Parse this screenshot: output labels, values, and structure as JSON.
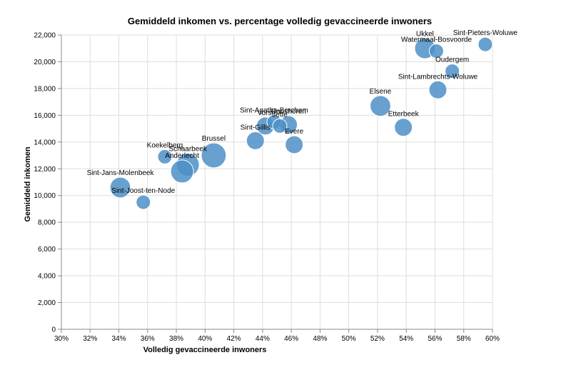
{
  "chart_data": {
    "type": "scatter",
    "title": "Gemiddeld inkomen vs. percentage volledig gevaccineerde inwoners",
    "xlabel": "Volledig gevaccineerde inwoners",
    "ylabel": "Gemiddeld inkomen",
    "xlim": [
      0.3,
      0.6
    ],
    "ylim": [
      0,
      22000
    ],
    "x_ticks": [
      "30%",
      "32%",
      "34%",
      "36%",
      "38%",
      "40%",
      "42%",
      "44%",
      "46%",
      "48%",
      "50%",
      "52%",
      "54%",
      "56%",
      "58%",
      "60%"
    ],
    "y_ticks": [
      "0",
      "2,000",
      "4,000",
      "6,000",
      "8,000",
      "10,000",
      "12,000",
      "14,000",
      "16,000",
      "18,000",
      "20,000",
      "22,000"
    ],
    "grid": true,
    "color": "#4e8fc7",
    "points": [
      {
        "label": "Sint-Jans-Molenbeek",
        "x": 0.341,
        "y": 10600,
        "size": 3
      },
      {
        "label": "Sint-Joost-ten-Node",
        "x": 0.357,
        "y": 9500,
        "size": 1
      },
      {
        "label": "Koekelberg",
        "x": 0.372,
        "y": 12900,
        "size": 1
      },
      {
        "label": "Schaarbeek",
        "x": 0.388,
        "y": 12300,
        "size": 4
      },
      {
        "label": "Anderlecht",
        "x": 0.384,
        "y": 11800,
        "size": 4
      },
      {
        "label": "Brussel",
        "x": 0.406,
        "y": 13000,
        "size": 5
      },
      {
        "label": "Sint-Gillis",
        "x": 0.435,
        "y": 14100,
        "size": 2
      },
      {
        "label": "Sint-Agatha-Berchem",
        "x": 0.448,
        "y": 15500,
        "size": 1
      },
      {
        "label": "Vorst",
        "x": 0.442,
        "y": 15200,
        "size": 2
      },
      {
        "label": "Jette",
        "x": 0.452,
        "y": 15200,
        "size": 1
      },
      {
        "label": "Ganshoren",
        "x": 0.458,
        "y": 15300,
        "size": 2
      },
      {
        "label": "Evere",
        "x": 0.462,
        "y": 13800,
        "size": 2
      },
      {
        "label": "Elsene",
        "x": 0.522,
        "y": 16700,
        "size": 3
      },
      {
        "label": "Etterbeek",
        "x": 0.538,
        "y": 15100,
        "size": 2
      },
      {
        "label": "Ukkel",
        "x": 0.553,
        "y": 21000,
        "size": 3
      },
      {
        "label": "Watermaal-Bosvoorde",
        "x": 0.561,
        "y": 20800,
        "size": 1
      },
      {
        "label": "Oudergem",
        "x": 0.572,
        "y": 19300,
        "size": 1
      },
      {
        "label": "Sint-Lambrechts-Woluwe",
        "x": 0.562,
        "y": 17900,
        "size": 2
      },
      {
        "label": "Sint-Pieters-Woluwe",
        "x": 0.595,
        "y": 21300,
        "size": 1
      }
    ]
  }
}
